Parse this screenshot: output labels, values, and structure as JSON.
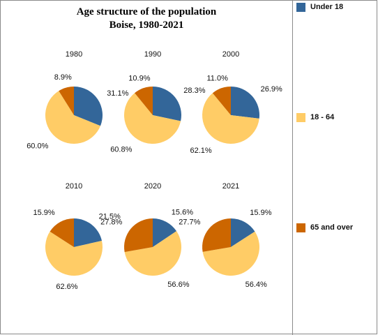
{
  "chart_data": {
    "type": "pie",
    "title": "Age structure of the population",
    "subtitle": "Boise, 1980-2021",
    "legend_position": "right",
    "series_names": [
      "Under 18",
      "18 - 64",
      "65 and over"
    ],
    "colors": [
      "#336699",
      "#ffcc66",
      "#cc6600"
    ],
    "pies": [
      {
        "year": "1980",
        "values": [
          31.1,
          60.0,
          8.9
        ],
        "labels": [
          "31.1%",
          "60.0%",
          "8.9%"
        ]
      },
      {
        "year": "1990",
        "values": [
          28.3,
          60.8,
          10.9
        ],
        "labels": [
          "28.3%",
          "60.8%",
          "10.9%"
        ]
      },
      {
        "year": "2000",
        "values": [
          26.9,
          62.1,
          11.0
        ],
        "labels": [
          "26.9%",
          "62.1%",
          "11.0%"
        ]
      },
      {
        "year": "2010",
        "values": [
          21.5,
          62.6,
          15.9
        ],
        "labels": [
          "21.5%",
          "62.6%",
          "15.9%"
        ]
      },
      {
        "year": "2020",
        "values": [
          15.6,
          56.6,
          27.8
        ],
        "labels": [
          "15.6%",
          "56.6%",
          "27.8%"
        ]
      },
      {
        "year": "2021",
        "values": [
          15.9,
          56.4,
          27.7
        ],
        "labels": [
          "15.9%",
          "56.4%",
          "27.7%"
        ]
      }
    ]
  },
  "legend": {
    "items": [
      {
        "label": "Under 18",
        "color": "#336699"
      },
      {
        "label": "18 - 64",
        "color": "#ffcc66"
      },
      {
        "label": "65 and over",
        "color": "#cc6600"
      }
    ]
  }
}
